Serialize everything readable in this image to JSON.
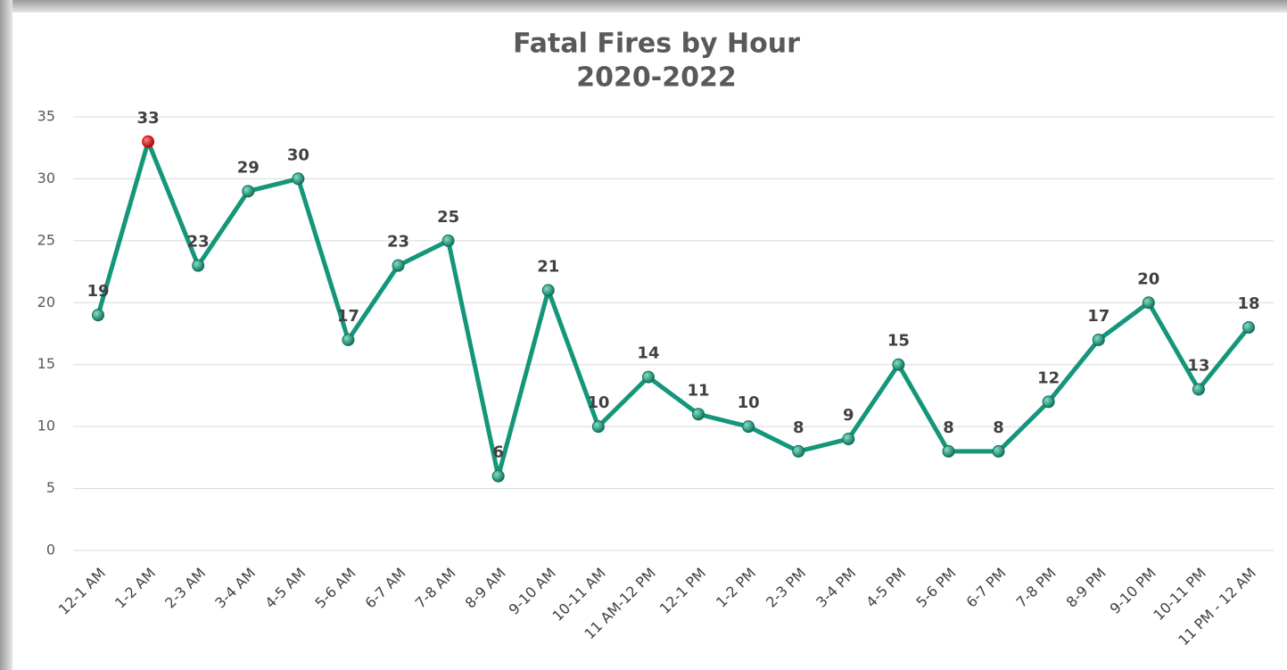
{
  "chart_data": {
    "type": "line",
    "title": "Fatal Fires by Hour",
    "subtitle": "2020-2022",
    "categories": [
      "12-1 AM",
      "1-2 AM",
      "2-3 AM",
      "3-4 AM",
      "4-5 AM",
      "5-6 AM",
      "6-7 AM",
      "7-8 AM",
      "8-9 AM",
      "9-10 AM",
      "10-11 AM",
      "11 AM-12 PM",
      "12-1 PM",
      "1-2 PM",
      "2-3 PM",
      "3-4 PM",
      "4-5 PM",
      "5-6 PM",
      "6-7 PM",
      "7-8 PM",
      "8-9 PM",
      "9-10 PM",
      "10-11 PM",
      "11 PM - 12 AM"
    ],
    "series": [
      {
        "name": "Fatal Fires",
        "color": "#14967a",
        "values": [
          19,
          33,
          23,
          29,
          30,
          17,
          23,
          25,
          6,
          21,
          10,
          14,
          11,
          10,
          8,
          9,
          15,
          8,
          8,
          12,
          17,
          20,
          13,
          18
        ]
      }
    ],
    "highlight": {
      "index": 1,
      "color": "#e00000"
    },
    "ylim": [
      0,
      35
    ],
    "yticks": [
      0,
      5,
      10,
      15,
      20,
      25,
      30,
      35
    ],
    "grid": true
  }
}
